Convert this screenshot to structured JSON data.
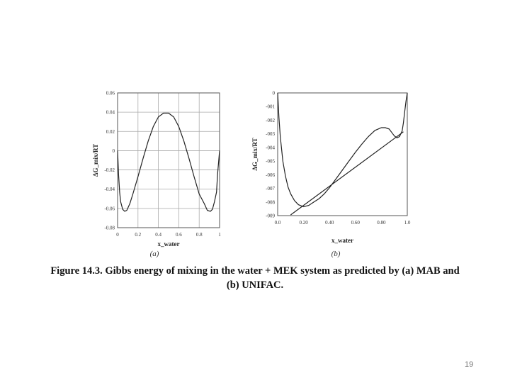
{
  "caption": {
    "line1": "Figure 14.3. Gibbs energy of mixing in the water + MEK system as predicted by (a) MAB and",
    "line2": "(b) UNIFAC."
  },
  "page_number": "19",
  "colors": {
    "line": "#222222",
    "grid": "#aaaaaa",
    "frame": "#555555"
  },
  "chart_data": [
    {
      "type": "line",
      "panel_label": "(a)",
      "title": "",
      "xlabel": "x_water",
      "ylabel": "ΔG_mix/RT",
      "xlim": [
        0,
        1
      ],
      "ylim": [
        -0.08,
        0.06
      ],
      "x_ticks": [
        0,
        0.2,
        0.4,
        0.6,
        0.8,
        1
      ],
      "x_tick_labels": [
        "0",
        "0.2",
        "0.4",
        "0.6",
        "0.8",
        "1"
      ],
      "y_ticks": [
        0.06,
        0.04,
        0.02,
        0,
        -0.02,
        -0.04,
        -0.06,
        -0.08
      ],
      "y_tick_labels": [
        "0.06",
        "0.04",
        "0.02",
        "0",
        "-0.02",
        "-0.04",
        "-0.06",
        "-0.08"
      ],
      "grid": true,
      "series": [
        {
          "x": [
            0.0,
            0.01,
            0.02,
            0.03,
            0.05,
            0.07,
            0.09,
            0.12,
            0.15,
            0.2,
            0.25,
            0.3,
            0.35,
            0.4,
            0.45,
            0.5,
            0.55,
            0.6,
            0.65,
            0.7,
            0.75,
            0.8,
            0.85,
            0.88,
            0.91,
            0.93,
            0.95,
            0.97,
            0.98,
            0.99,
            1.0
          ],
          "y": [
            0.0,
            -0.025,
            -0.043,
            -0.053,
            -0.061,
            -0.063,
            -0.062,
            -0.055,
            -0.045,
            -0.027,
            -0.008,
            0.01,
            0.025,
            0.035,
            0.039,
            0.039,
            0.035,
            0.025,
            0.01,
            -0.008,
            -0.027,
            -0.045,
            -0.055,
            -0.062,
            -0.063,
            -0.061,
            -0.053,
            -0.043,
            -0.025,
            -0.012,
            0.0
          ]
        }
      ]
    },
    {
      "type": "line",
      "panel_label": "(b)",
      "title": "",
      "xlabel": "x_water",
      "ylabel": "ΔG_mix/RT",
      "xlim": [
        0,
        1
      ],
      "ylim": [
        -0.09,
        0
      ],
      "x_ticks": [
        0,
        0.2,
        0.4,
        0.6,
        0.8,
        1.0
      ],
      "x_tick_labels": [
        "0.0",
        "0.20",
        "0.40",
        "0.60",
        "0.80",
        "1.0"
      ],
      "y_ticks": [
        0,
        -0.01,
        -0.02,
        -0.03,
        -0.04,
        -0.05,
        -0.06,
        -0.07,
        -0.08,
        -0.09
      ],
      "y_tick_labels": [
        "0",
        "-001",
        "-002",
        "-003",
        "-004",
        "-005",
        "-006",
        "-007",
        "-008",
        "-009"
      ],
      "grid": false,
      "series": [
        {
          "name": "",
          "x": [
            0.0,
            0.01,
            0.02,
            0.04,
            0.06,
            0.08,
            0.1,
            0.13,
            0.16,
            0.2,
            0.24,
            0.28,
            0.32,
            0.36,
            0.4,
            0.45,
            0.5,
            0.55,
            0.6,
            0.65,
            0.7,
            0.75,
            0.8,
            0.83,
            0.86,
            0.88,
            0.9,
            0.92,
            0.94,
            0.96,
            0.97,
            0.98,
            0.99,
            1.0
          ],
          "y": [
            0.0,
            -0.018,
            -0.032,
            -0.05,
            -0.061,
            -0.069,
            -0.074,
            -0.079,
            -0.082,
            -0.0835,
            -0.0825,
            -0.08,
            -0.0775,
            -0.074,
            -0.0695,
            -0.063,
            -0.0565,
            -0.05,
            -0.0435,
            -0.0375,
            -0.032,
            -0.0275,
            -0.0255,
            -0.0255,
            -0.0265,
            -0.029,
            -0.0315,
            -0.033,
            -0.032,
            -0.028,
            -0.022,
            -0.014,
            -0.006,
            0.0
          ]
        },
        {
          "name": "",
          "x": [
            0.1,
            0.97
          ],
          "y": [
            -0.0895,
            -0.0285
          ]
        }
      ]
    }
  ]
}
